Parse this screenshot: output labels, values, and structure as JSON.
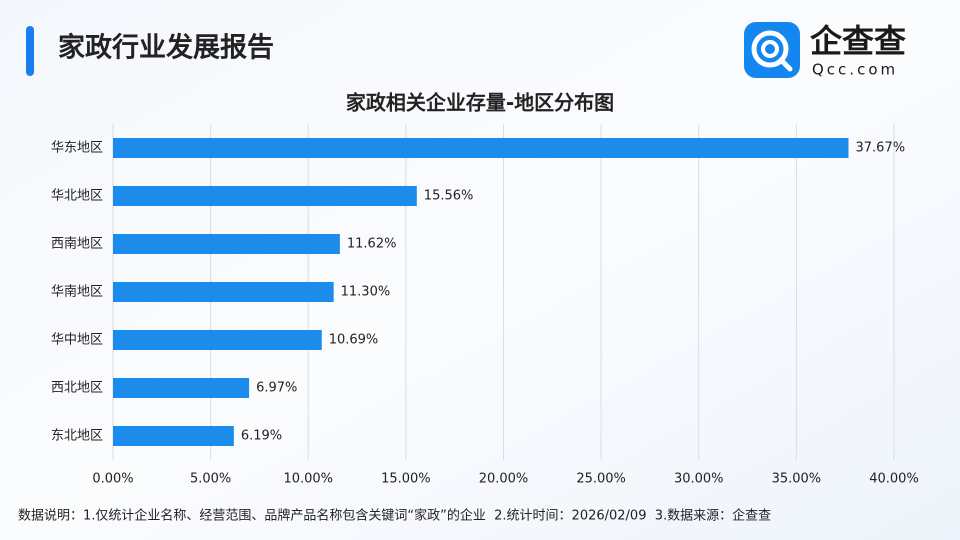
{
  "header": {
    "title": "家政行业发展报告",
    "logo_name": "企查查",
    "logo_domain": "Qcc.com"
  },
  "chart_data": {
    "type": "bar",
    "orientation": "horizontal",
    "title": "家政相关企业存量-地区分布图",
    "categories": [
      "华东地区",
      "华北地区",
      "西南地区",
      "华南地区",
      "华中地区",
      "西北地区",
      "东北地区"
    ],
    "values": [
      37.67,
      15.56,
      11.62,
      11.3,
      10.69,
      6.97,
      6.19
    ],
    "value_labels": [
      "37.67%",
      "15.56%",
      "11.62%",
      "11.30%",
      "10.69%",
      "6.97%",
      "6.19%"
    ],
    "color": "#1b8ceb",
    "xlim": [
      0,
      40
    ],
    "xticks": [
      {
        "value": 0,
        "label": "0.00%"
      },
      {
        "value": 5,
        "label": "5.00%"
      },
      {
        "value": 10,
        "label": "10.00%"
      },
      {
        "value": 15,
        "label": "15.00%"
      },
      {
        "value": 20,
        "label": "20.00%"
      },
      {
        "value": 25,
        "label": "25.00%"
      },
      {
        "value": 30,
        "label": "30.00%"
      },
      {
        "value": 35,
        "label": "35.00%"
      },
      {
        "value": 40,
        "label": "40.00%"
      }
    ],
    "grid": true
  },
  "footer": {
    "note": "数据说明：1.仅统计企业名称、经营范围、品牌产品名称包含关键词“家政”的企业  2.统计时间：2026/02/09  3.数据来源：企查查"
  }
}
